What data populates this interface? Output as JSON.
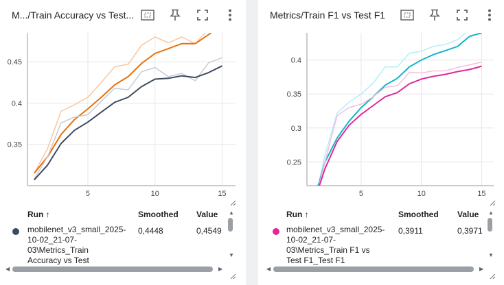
{
  "left_panel": {
    "title": "M.../Train Accuracy vs Test...",
    "table": {
      "col_run": "Run ↑",
      "col_smoothed": "Smoothed",
      "col_value": "Value",
      "row": {
        "name_lines": [
          "mobilenet_v3_small_2025-",
          "10-02_21-07-",
          "03\\Metrics_Train",
          "Accuracy vs Test"
        ],
        "smoothed": "0,4448",
        "value": "0,4549",
        "color": "#3b4a5e"
      }
    }
  },
  "right_panel": {
    "title": "Metrics/Train F1 vs Test F1",
    "table": {
      "col_run": "Run ↑",
      "col_smoothed": "Smoothed",
      "col_value": "Value",
      "row": {
        "name_lines": [
          "mobilenet_v3_small_2025-",
          "10-02_21-07-",
          "03\\Metrics_Train F1 vs",
          "Test F1_Test F1"
        ],
        "smoothed": "0,3911",
        "value": "0,3971",
        "color": "#e0289a"
      }
    }
  },
  "icons": [
    "fit-domain-icon",
    "pin-icon",
    "fullscreen-icon",
    "more-vert-icon"
  ],
  "chart_data": [
    {
      "type": "line",
      "xlim": [
        0.5,
        16
      ],
      "ylim": [
        0.3,
        0.485
      ],
      "x_ticks": [
        5,
        10,
        15
      ],
      "y_ticks": [
        0.35,
        0.4,
        0.45
      ],
      "x_tick_labels": [
        "5",
        "10",
        "15"
      ],
      "y_tick_labels": [
        "0.35",
        "0.4",
        "0.45"
      ],
      "series": [
        {
          "color": "#f7c79e",
          "x": [
            1,
            2,
            3,
            4,
            5,
            6,
            7,
            8,
            9,
            10,
            11,
            12,
            13,
            14,
            15
          ],
          "y": [
            0.315,
            0.345,
            0.39,
            0.398,
            0.407,
            0.425,
            0.444,
            0.447,
            0.47,
            0.48,
            0.473,
            0.48,
            0.472,
            0.49,
            0.5
          ]
        },
        {
          "color": "#e8710a",
          "x": [
            1,
            2,
            3,
            4,
            5,
            6,
            7,
            8,
            9,
            10,
            11,
            12,
            13,
            14,
            15
          ],
          "y": [
            0.315,
            0.335,
            0.362,
            0.38,
            0.393,
            0.407,
            0.422,
            0.432,
            0.448,
            0.46,
            0.466,
            0.472,
            0.472,
            0.483,
            0.495
          ]
        },
        {
          "color": "#c5ccd8",
          "x": [
            1,
            2,
            3,
            4,
            5,
            6,
            7,
            8,
            9,
            10,
            11,
            12,
            13,
            14,
            15
          ],
          "y": [
            0.308,
            0.335,
            0.376,
            0.383,
            0.386,
            0.402,
            0.418,
            0.416,
            0.438,
            0.443,
            0.432,
            0.436,
            0.427,
            0.449,
            0.455
          ]
        },
        {
          "color": "#3b4a5e",
          "x": [
            1,
            2,
            3,
            4,
            5,
            6,
            7,
            8,
            9,
            10,
            11,
            12,
            13,
            14,
            15
          ],
          "y": [
            0.307,
            0.325,
            0.351,
            0.367,
            0.377,
            0.389,
            0.401,
            0.407,
            0.42,
            0.429,
            0.43,
            0.433,
            0.431,
            0.437,
            0.445
          ]
        }
      ]
    },
    {
      "type": "line",
      "xlim": [
        0.5,
        16
      ],
      "ylim": [
        0.215,
        0.44
      ],
      "x_ticks": [
        5,
        10,
        15
      ],
      "y_ticks": [
        0.25,
        0.3,
        0.35,
        0.4
      ],
      "x_tick_labels": [
        "5",
        "10",
        "15"
      ],
      "y_tick_labels": [
        "0.25",
        "0.3",
        "0.35",
        "0.4"
      ],
      "series": [
        {
          "color": "#b2eef8",
          "x": [
            1,
            1.5,
            2,
            3,
            4,
            5,
            6,
            7,
            8,
            9,
            10,
            11,
            12,
            13,
            14,
            15
          ],
          "y": [
            0.2,
            0.22,
            0.26,
            0.322,
            0.338,
            0.35,
            0.366,
            0.39,
            0.39,
            0.41,
            0.413,
            0.42,
            0.423,
            0.43,
            0.445,
            0.45
          ]
        },
        {
          "color": "#12b5cb",
          "x": [
            1,
            1.5,
            2,
            3,
            4,
            5,
            6,
            7,
            8,
            9,
            10,
            11,
            12,
            13,
            14,
            15
          ],
          "y": [
            0.2,
            0.218,
            0.25,
            0.285,
            0.31,
            0.33,
            0.346,
            0.363,
            0.373,
            0.39,
            0.4,
            0.408,
            0.414,
            0.42,
            0.435,
            0.44
          ]
        },
        {
          "color": "#f5bfe0",
          "x": [
            1,
            1.5,
            2,
            3,
            4,
            5,
            6,
            7,
            8,
            9,
            10,
            11,
            12,
            13,
            14,
            15
          ],
          "y": [
            0.2,
            0.215,
            0.25,
            0.318,
            0.33,
            0.335,
            0.346,
            0.36,
            0.362,
            0.382,
            0.381,
            0.384,
            0.384,
            0.389,
            0.393,
            0.397
          ]
        },
        {
          "color": "#e0289a",
          "x": [
            1,
            1.5,
            2,
            3,
            4,
            5,
            6,
            7,
            8,
            9,
            10,
            11,
            12,
            13,
            14,
            15
          ],
          "y": [
            0.2,
            0.213,
            0.24,
            0.28,
            0.304,
            0.32,
            0.333,
            0.346,
            0.352,
            0.365,
            0.372,
            0.376,
            0.379,
            0.383,
            0.386,
            0.391
          ]
        }
      ]
    }
  ]
}
